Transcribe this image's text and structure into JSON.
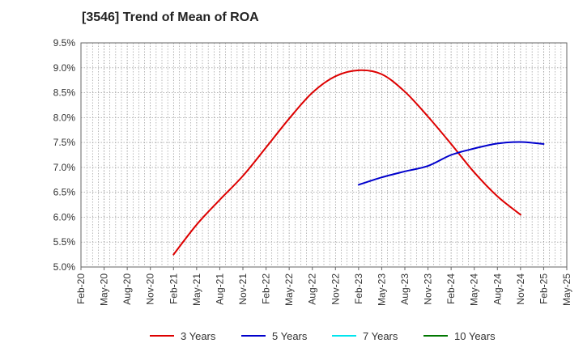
{
  "title": "[3546]  Trend of Mean of ROA",
  "chart_data": {
    "type": "line",
    "title": "[3546]  Trend of Mean of ROA",
    "xlabel": "",
    "ylabel": "",
    "ylim": [
      5.0,
      9.5
    ],
    "grid": true,
    "legend_position": "bottom",
    "y_ticks": [
      "5.0%",
      "5.5%",
      "6.0%",
      "6.5%",
      "7.0%",
      "7.5%",
      "8.0%",
      "8.5%",
      "9.0%",
      "9.5%"
    ],
    "x_ticks": [
      "Feb-20",
      "May-20",
      "Aug-20",
      "Nov-20",
      "Feb-21",
      "May-21",
      "Aug-21",
      "Nov-21",
      "Feb-22",
      "May-22",
      "Aug-22",
      "Nov-22",
      "Feb-23",
      "May-23",
      "Aug-23",
      "Nov-23",
      "Feb-24",
      "May-24",
      "Aug-24",
      "Nov-24",
      "Feb-25",
      "May-25"
    ],
    "series": [
      {
        "name": "3 Years",
        "color": "#dd0000",
        "x": [
          "Feb-21",
          "May-21",
          "Aug-21",
          "Nov-21",
          "Feb-22",
          "May-22",
          "Aug-22",
          "Nov-22",
          "Feb-23",
          "May-23",
          "Aug-23",
          "Nov-23",
          "Feb-24",
          "May-24",
          "Aug-24",
          "Nov-24",
          "Feb-25"
        ],
        "values": [
          5.25,
          5.85,
          6.35,
          6.83,
          7.4,
          7.98,
          8.5,
          8.83,
          8.95,
          8.87,
          8.52,
          8.02,
          7.47,
          6.9,
          6.42,
          6.05,
          null
        ]
      },
      {
        "name": "5 Years",
        "color": "#0000cc",
        "x": [
          "Feb-23",
          "May-23",
          "Aug-23",
          "Nov-23",
          "Feb-24",
          "May-24",
          "Aug-24",
          "Nov-24",
          "Feb-25"
        ],
        "values": [
          6.65,
          6.8,
          6.92,
          7.03,
          7.25,
          7.38,
          7.48,
          7.51,
          7.47
        ]
      },
      {
        "name": "7 Years",
        "color": "#00e5ee",
        "x": [],
        "values": []
      },
      {
        "name": "10 Years",
        "color": "#007700",
        "x": [],
        "values": []
      }
    ]
  }
}
